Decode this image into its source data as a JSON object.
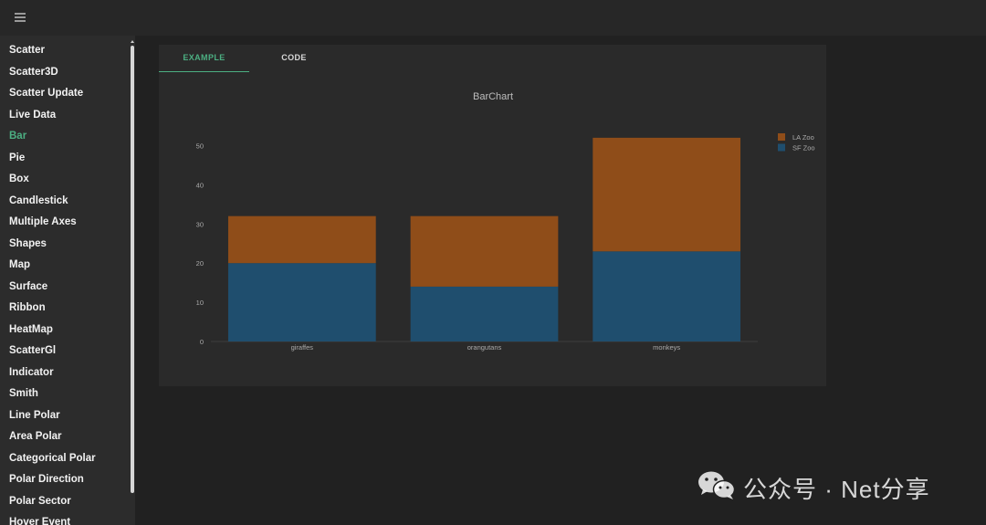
{
  "sidebar": {
    "items": [
      {
        "label": "Scatter"
      },
      {
        "label": "Scatter3D"
      },
      {
        "label": "Scatter Update"
      },
      {
        "label": "Live Data"
      },
      {
        "label": "Bar",
        "active": true
      },
      {
        "label": "Pie"
      },
      {
        "label": "Box"
      },
      {
        "label": "Candlestick"
      },
      {
        "label": "Multiple Axes"
      },
      {
        "label": "Shapes"
      },
      {
        "label": "Map"
      },
      {
        "label": "Surface"
      },
      {
        "label": "Ribbon"
      },
      {
        "label": "HeatMap"
      },
      {
        "label": "ScatterGl"
      },
      {
        "label": "Indicator"
      },
      {
        "label": "Smith"
      },
      {
        "label": "Line Polar"
      },
      {
        "label": "Area Polar"
      },
      {
        "label": "Categorical Polar"
      },
      {
        "label": "Polar Direction"
      },
      {
        "label": "Polar Sector"
      },
      {
        "label": "Hover Event"
      }
    ]
  },
  "tabs": {
    "example": "EXAMPLE",
    "code": "CODE",
    "active": "example"
  },
  "chart_data": {
    "type": "bar",
    "barmode": "stack",
    "title": "BarChart",
    "xlabel": "",
    "ylabel": "",
    "categories": [
      "giraffes",
      "orangutans",
      "monkeys"
    ],
    "series": [
      {
        "name": "SF Zoo",
        "values": [
          20,
          14,
          23
        ],
        "color": "#1f4e6e"
      },
      {
        "name": "LA Zoo",
        "values": [
          12,
          18,
          29
        ],
        "color": "#8f4d19"
      }
    ],
    "ylim": [
      0,
      55
    ],
    "yticks": [
      0,
      10,
      20,
      30,
      40,
      50
    ],
    "grid": false,
    "legend": "top-right",
    "legend_order": [
      "LA Zoo",
      "SF Zoo"
    ]
  },
  "watermark": {
    "text": "公众号 · Net分享"
  },
  "colors": {
    "accent": "#4caf82",
    "background": "#212121",
    "panel": "#2a2a2a",
    "sidebar": "#2c2c2c"
  }
}
